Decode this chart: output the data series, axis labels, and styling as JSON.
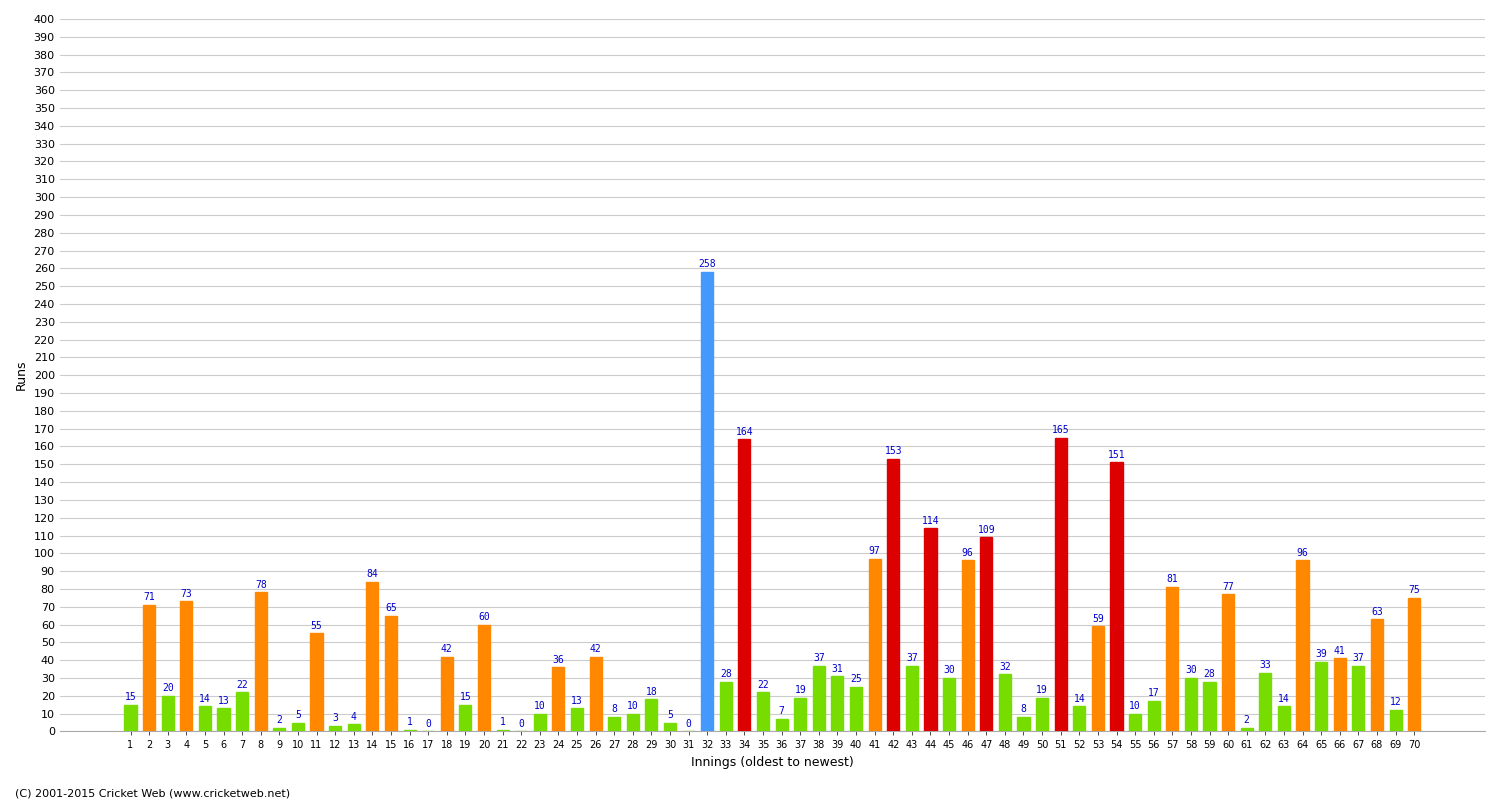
{
  "xlabel": "Innings (oldest to newest)",
  "ylabel": "Runs",
  "background_color": "#ffffff",
  "grid_color": "#cccccc",
  "label_color": "#0000cc",
  "innings_labels": [
    "1",
    "2",
    "3",
    "4",
    "5",
    "6",
    "7",
    "8",
    "9",
    "10",
    "11",
    "12",
    "13",
    "14",
    "15",
    "16",
    "17",
    "18",
    "19",
    "20",
    "21",
    "22",
    "23",
    "24",
    "25",
    "26",
    "27",
    "28",
    "29",
    "30",
    "31",
    "32",
    "33",
    "34",
    "35",
    "36",
    "37",
    "38",
    "39",
    "40",
    "41",
    "42",
    "43",
    "44",
    "45",
    "46",
    "47",
    "48",
    "49",
    "50",
    "51",
    "52",
    "53",
    "54",
    "55",
    "56",
    "57",
    "58",
    "59",
    "60",
    "61",
    "62",
    "63",
    "64",
    "65",
    "66",
    "67",
    "68",
    "69",
    "70"
  ],
  "values": [
    15,
    71,
    20,
    73,
    14,
    13,
    22,
    78,
    2,
    5,
    55,
    3,
    4,
    84,
    65,
    1,
    0,
    42,
    15,
    60,
    1,
    0,
    10,
    36,
    13,
    42,
    8,
    10,
    18,
    5,
    0,
    258,
    28,
    164,
    22,
    7,
    19,
    37,
    31,
    25,
    97,
    153,
    37,
    114,
    30,
    96,
    109,
    32,
    8,
    19,
    165,
    14,
    59,
    151,
    10,
    17,
    81,
    30,
    28,
    77,
    2,
    33,
    14,
    96,
    39,
    41,
    37,
    63,
    12,
    75
  ],
  "colors": [
    "#77dd00",
    "#ff8800",
    "#77dd00",
    "#ff8800",
    "#77dd00",
    "#77dd00",
    "#77dd00",
    "#ff8800",
    "#77dd00",
    "#77dd00",
    "#ff8800",
    "#77dd00",
    "#77dd00",
    "#ff8800",
    "#ff8800",
    "#77dd00",
    "#77dd00",
    "#ff8800",
    "#77dd00",
    "#ff8800",
    "#77dd00",
    "#77dd00",
    "#77dd00",
    "#ff8800",
    "#77dd00",
    "#ff8800",
    "#77dd00",
    "#77dd00",
    "#77dd00",
    "#77dd00",
    "#77dd00",
    "#4499ff",
    "#77dd00",
    "#dd0000",
    "#77dd00",
    "#77dd00",
    "#77dd00",
    "#77dd00",
    "#77dd00",
    "#77dd00",
    "#ff8800",
    "#dd0000",
    "#77dd00",
    "#dd0000",
    "#77dd00",
    "#ff8800",
    "#dd0000",
    "#77dd00",
    "#77dd00",
    "#77dd00",
    "#dd0000",
    "#77dd00",
    "#ff8800",
    "#dd0000",
    "#77dd00",
    "#77dd00",
    "#ff8800",
    "#77dd00",
    "#77dd00",
    "#ff8800",
    "#77dd00",
    "#77dd00",
    "#77dd00",
    "#ff8800",
    "#77dd00",
    "#ff8800",
    "#77dd00",
    "#ff8800",
    "#77dd00",
    "#ff8800"
  ],
  "ylim": [
    0,
    400
  ],
  "ytick_step": 10,
  "footer": "(C) 2001-2015 Cricket Web (www.cricketweb.net)",
  "label_fontsize": 7,
  "bar_width": 0.65,
  "fig_width": 15.0,
  "fig_height": 8.0,
  "fig_dpi": 100
}
